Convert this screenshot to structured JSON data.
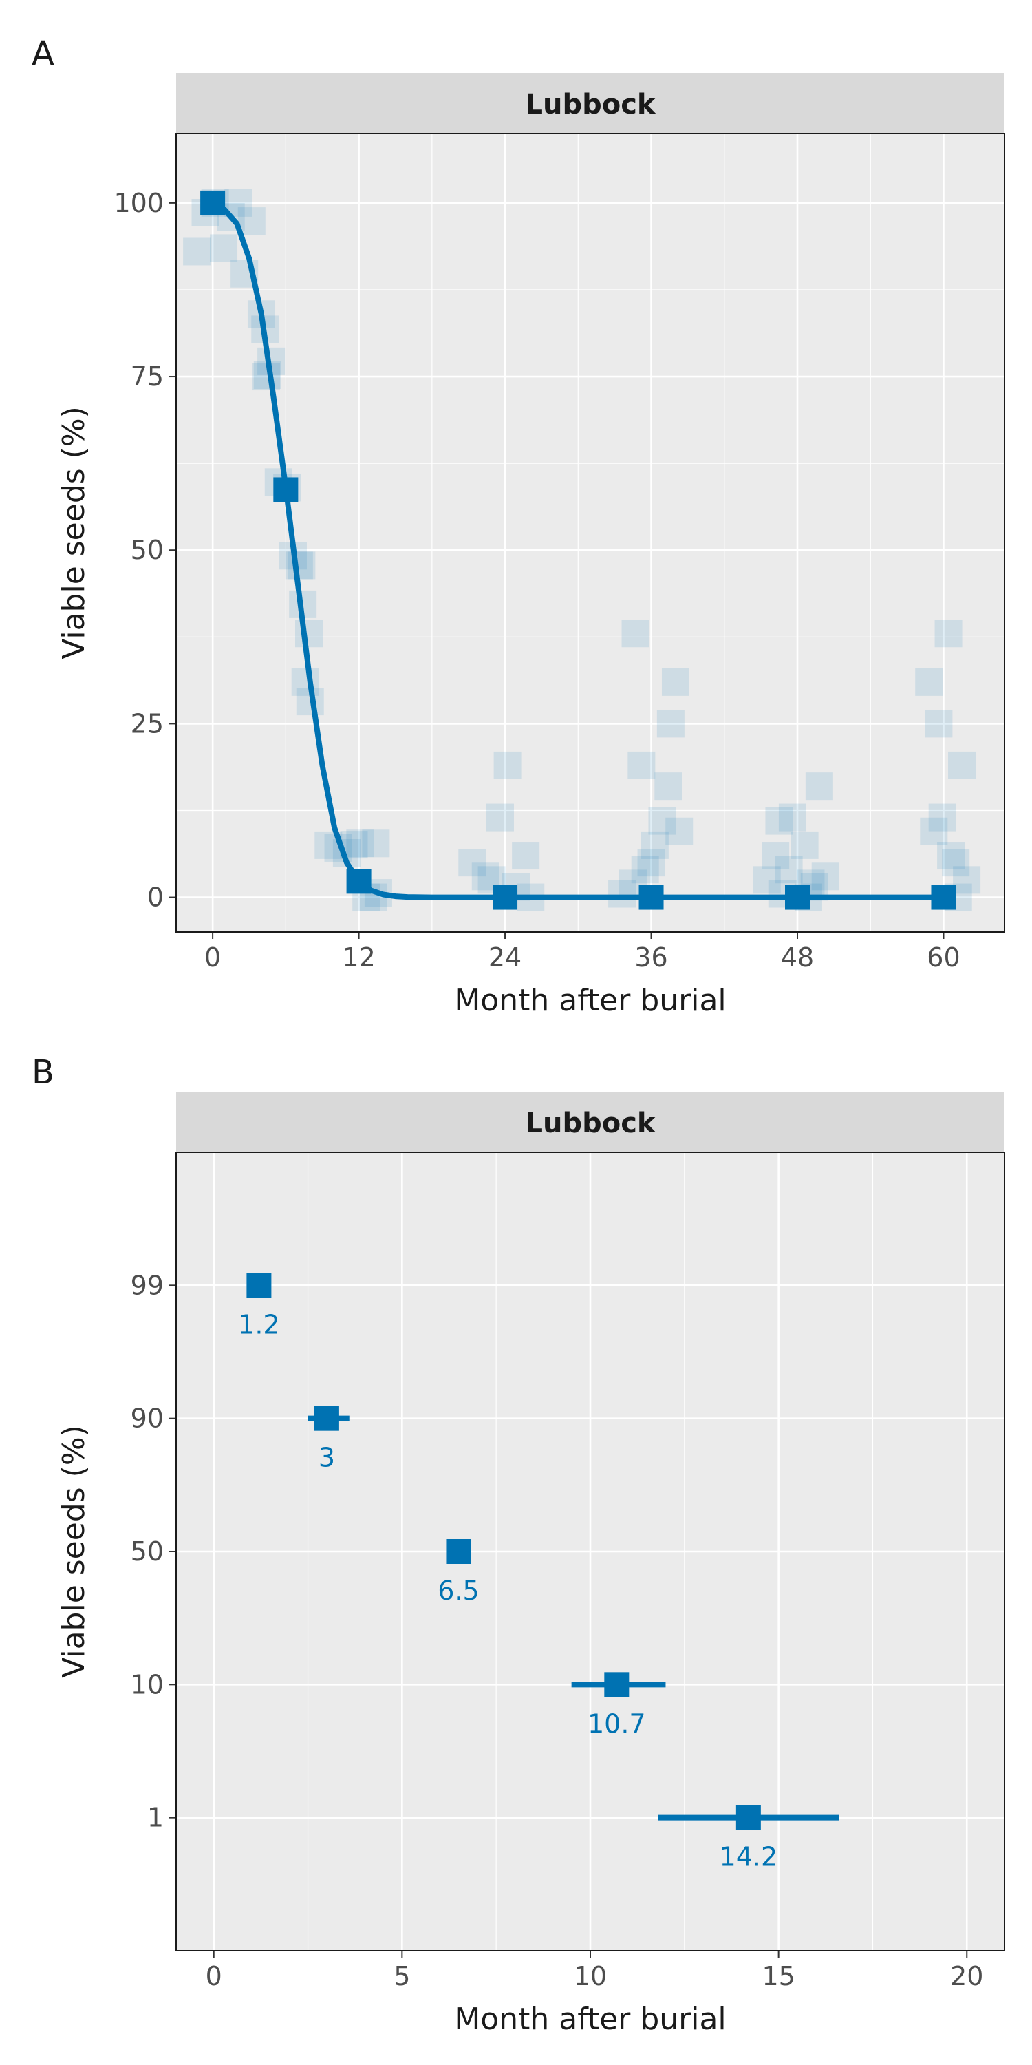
{
  "colors": {
    "series": "#0072b2",
    "panel_background": "#ebebeb",
    "strip_background": "#d9d9d9",
    "gridline": "#ffffff"
  },
  "chart_data": [
    {
      "panel": "A",
      "type": "line",
      "facet_label": "Lubbock",
      "xlabel": "Month after burial",
      "ylabel": "Viable seeds (%)",
      "xlim": [
        -3,
        65
      ],
      "ylim": [
        -5,
        110
      ],
      "xticks": [
        0,
        12,
        24,
        36,
        48,
        60
      ],
      "yticks": [
        0,
        25,
        50,
        75,
        100
      ],
      "grid": true,
      "fitted_curve": {
        "x": [
          0,
          1,
          2,
          3,
          4,
          5,
          6,
          7,
          8,
          9,
          10,
          11,
          12,
          13,
          14,
          15,
          16,
          18,
          20,
          24,
          30,
          36,
          42,
          48,
          54,
          60
        ],
        "y": [
          100,
          99,
          97,
          92,
          84,
          72,
          59,
          45,
          31,
          19,
          10,
          5,
          2.3,
          1,
          0.4,
          0.15,
          0.05,
          0,
          0,
          0,
          0,
          0,
          0,
          0,
          0,
          0
        ]
      },
      "means": {
        "x": [
          0,
          6,
          12,
          24,
          36,
          48,
          60
        ],
        "y": [
          100,
          58.7,
          2.3,
          0,
          0,
          0,
          0
        ]
      },
      "observations": {
        "x": [
          -1.3,
          -0.6,
          0.2,
          0.9,
          1.5,
          2.1,
          2.6,
          4.3,
          3.2,
          4.5,
          4.8,
          5.4,
          6.6,
          7.1,
          7.6,
          4.0,
          7.9,
          4.4,
          6.1,
          7.3,
          8.0,
          7.4,
          9.5,
          10.3,
          11.6,
          12.6,
          13.6,
          12.1,
          13.2,
          11.0,
          13.4,
          21.3,
          24.2,
          22.9,
          25.7,
          23.6,
          26.1,
          24.9,
          22.4,
          33.6,
          34.5,
          35.5,
          36.3,
          36.9,
          37.4,
          38.0,
          38.3,
          37.6,
          34.7,
          36.0,
          35.2,
          45.5,
          46.2,
          47.6,
          48.9,
          49.4,
          50.3,
          46.8,
          49.1,
          47.3,
          48.6,
          46.5,
          49.8,
          58.8,
          59.2,
          59.6,
          60.4,
          61.0,
          61.5,
          61.9,
          60.6,
          59.9,
          61.2
        ]
      }
    },
    {
      "panel": "B",
      "type": "scatter",
      "facet_label": "Lubbock",
      "xlabel": "Month after burial",
      "ylabel": "Viable seeds (%)",
      "xlim": [
        -1,
        21
      ],
      "xticks": [
        0,
        5,
        10,
        15,
        20
      ],
      "y_categories": [
        "99",
        "90",
        "50",
        "10",
        "1"
      ],
      "grid": true,
      "points": [
        {
          "y": "99",
          "x": 1.2,
          "low": 0.9,
          "high": 1.5,
          "label": "1.2"
        },
        {
          "y": "90",
          "x": 3.0,
          "low": 2.5,
          "high": 3.6,
          "label": "3"
        },
        {
          "y": "50",
          "x": 6.5,
          "low": 6.2,
          "high": 6.8,
          "label": "6.5"
        },
        {
          "y": "10",
          "x": 10.7,
          "low": 9.5,
          "high": 12.0,
          "label": "10.7"
        },
        {
          "y": "1",
          "x": 14.2,
          "low": 11.8,
          "high": 16.6,
          "label": "14.2"
        }
      ]
    }
  ]
}
